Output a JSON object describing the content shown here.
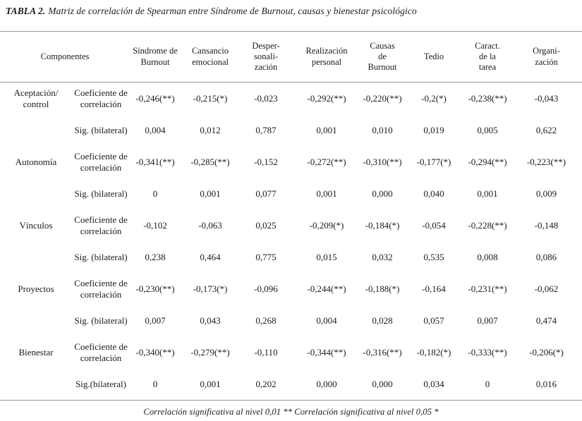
{
  "caption": {
    "label": "TABLA 2.",
    "text": "Matriz de correlación de Spearman entre Síndrome de Burnout, causas y bienestar psicológico"
  },
  "table": {
    "components_header": "Componentes",
    "columns": [
      "Síndrome de\nBurnout",
      "Cansancio\nemocional",
      "Desper-sonali-\nzación",
      "Realización\npersonal",
      "Causas\nde\nBurnout",
      "Tedio",
      "Caract.\nde la\ntarea",
      "Organi-\nzación"
    ],
    "groups": [
      {
        "name": "Aceptación/\ncontrol",
        "coef_label": "Coeficiente de\ncorrelación",
        "sig_label": "Sig. (bilateral)",
        "coef": [
          "-0,246(**)",
          "-0,215(*)",
          "-0,023",
          "-0,292(**)",
          "-0,220(**)",
          "-0,2(*)",
          "-0,238(**)",
          "-0,043"
        ],
        "sig": [
          "0,004",
          "0,012",
          "0,787",
          "0,001",
          "0,010",
          "0,019",
          "0,005",
          "0,622"
        ]
      },
      {
        "name": "Autonomía",
        "coef_label": "Coeficiente de\ncorrelación",
        "sig_label": "Sig. (bilateral)",
        "coef": [
          "-0,341(**)",
          "-0,285(**)",
          "-0,152",
          "-0,272(**)",
          "-0,310(**)",
          "-0,177(*)",
          "-0,294(**)",
          "-0,223(**)"
        ],
        "sig": [
          "0",
          "0,001",
          "0,077",
          "0,001",
          "0,000",
          "0,040",
          "0,001",
          "0,009"
        ]
      },
      {
        "name": "Vínculos",
        "coef_label": "Coeficiente de\ncorrelación",
        "sig_label": "Sig. (bilateral)",
        "coef": [
          "-0,102",
          "-0,063",
          "0,025",
          "-0,209(*)",
          "-0,184(*)",
          "-0,054",
          "-0,228(**)",
          "-0,148"
        ],
        "sig": [
          "0,238",
          "0,464",
          "0,775",
          "0,015",
          "0,032",
          "0,535",
          "0,008",
          "0,086"
        ]
      },
      {
        "name": "Proyectos",
        "coef_label": "Coeficiente de\ncorrelación",
        "sig_label": "Sig. (bilateral)",
        "coef": [
          "-0,230(**)",
          "-0,173(*)",
          "-0,096",
          "-0,244(**)",
          "-0,188(*)",
          "-0,164",
          "-0,231(**)",
          "-0,062"
        ],
        "sig": [
          "0,007",
          "0,043",
          "0,268",
          "0,004",
          "0,028",
          "0,057",
          "0,007",
          "0,474"
        ]
      },
      {
        "name": "Bienestar",
        "coef_label": "Coeficiente de\ncorrelación",
        "sig_label": "Sig.(bilateral)",
        "coef": [
          "-0,340(**)",
          "-0,279(**)",
          "-0,110",
          "-0,344(**)",
          "-0,316(**)",
          "-0,182(*)",
          "-0,333(**)",
          "-0,206(*)"
        ],
        "sig": [
          "0",
          "0,001",
          "0,202",
          "0,000",
          "0,000",
          "0,034",
          "0",
          "0,016"
        ]
      }
    ]
  },
  "footnote": "Correlación significativa al nivel 0,01 ** Correlación significativa al nivel 0,05 *"
}
